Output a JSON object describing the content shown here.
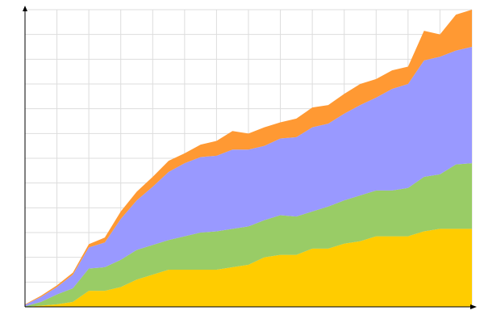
{
  "chart_data": {
    "type": "area",
    "stacked": true,
    "grid": true,
    "xlim": [
      0,
      14
    ],
    "ylim": [
      0,
      12
    ],
    "x": [
      0,
      0.5,
      1,
      1.5,
      2,
      2.5,
      3,
      3.5,
      4,
      4.5,
      5,
      5.5,
      6,
      6.5,
      7,
      7.5,
      8,
      8.5,
      9,
      9.5,
      10,
      10.5,
      11,
      11.5,
      12,
      12.5,
      13,
      13.5,
      14
    ],
    "series": [
      {
        "color": "#ffcc00",
        "values": [
          0,
          0.05,
          0.1,
          0.2,
          0.65,
          0.65,
          0.8,
          1.1,
          1.3,
          1.5,
          1.5,
          1.5,
          1.5,
          1.6,
          1.7,
          2.0,
          2.1,
          2.1,
          2.35,
          2.35,
          2.55,
          2.65,
          2.85,
          2.85,
          2.85,
          3.05,
          3.15,
          3.15,
          3.15
        ]
      },
      {
        "color": "#99cc66",
        "values": [
          0.02,
          0.15,
          0.4,
          0.55,
          0.9,
          0.95,
          1.1,
          1.2,
          1.2,
          1.2,
          1.35,
          1.5,
          1.55,
          1.55,
          1.55,
          1.5,
          1.6,
          1.55,
          1.5,
          1.7,
          1.75,
          1.85,
          1.85,
          1.85,
          1.95,
          2.2,
          2.2,
          2.6,
          2.65
        ]
      },
      {
        "color": "#9999ff",
        "values": [
          0.06,
          0.2,
          0.3,
          0.55,
          0.85,
          1.0,
          1.65,
          2.0,
          2.35,
          2.75,
          2.95,
          3.05,
          3.05,
          3.2,
          3.1,
          3.0,
          3.1,
          3.2,
          3.4,
          3.35,
          3.5,
          3.65,
          3.75,
          4.1,
          4.2,
          4.7,
          4.75,
          4.6,
          4.7
        ]
      },
      {
        "color": "#ff9933",
        "values": [
          0.02,
          0.05,
          0.07,
          0.08,
          0.13,
          0.2,
          0.3,
          0.35,
          0.4,
          0.45,
          0.4,
          0.5,
          0.6,
          0.75,
          0.65,
          0.75,
          0.65,
          0.75,
          0.8,
          0.75,
          0.8,
          0.85,
          0.75,
          0.75,
          0.7,
          1.2,
          0.9,
          1.45,
          1.5
        ]
      }
    ],
    "axis_color": "#000000",
    "grid_color": "#dddddd",
    "title": "",
    "xlabel": "",
    "ylabel": ""
  }
}
